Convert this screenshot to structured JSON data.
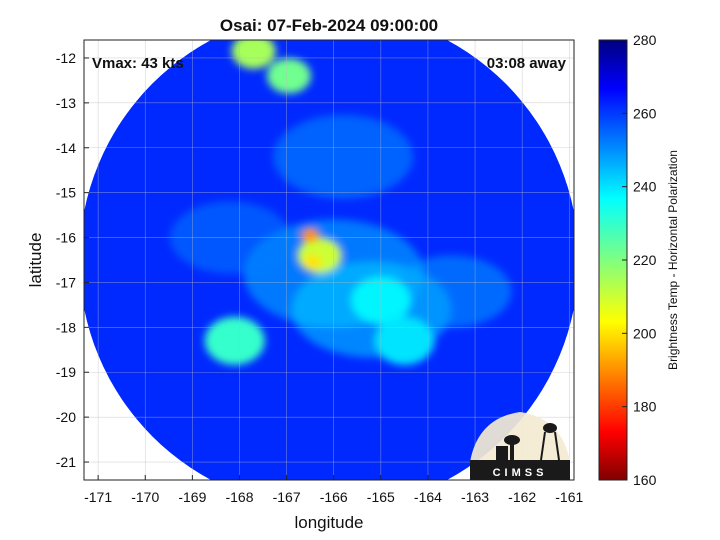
{
  "chart_data": {
    "type": "heatmap",
    "title": "Osai: 07-Feb-2024 09:00:00",
    "xlabel": "longitude",
    "ylabel": "latitude",
    "xlim": [
      -171.3,
      -160.9
    ],
    "ylim": [
      -21.4,
      -11.6
    ],
    "xticks": [
      -171,
      -170,
      -169,
      -168,
      -167,
      -166,
      -165,
      -164,
      -163,
      -162,
      -161
    ],
    "yticks": [
      -12,
      -13,
      -14,
      -15,
      -16,
      -17,
      -18,
      -19,
      -20,
      -21
    ],
    "y_axis_reversed": true,
    "grid": true,
    "annotations": {
      "top_left": "Vmax: 43 kts",
      "top_right": "03:08 away"
    },
    "colorbar": {
      "label": "Brightness Temp - Horizontal Polarization",
      "min": 160,
      "max": 280,
      "ticks": [
        280,
        260,
        240,
        220,
        200,
        180,
        160
      ],
      "colormap": "jet"
    },
    "swath": {
      "center": [
        -166.1,
        -16.5
      ],
      "radius_deg": 5.3
    },
    "features": [
      {
        "lon": -166.3,
        "lat": -16.4,
        "value": 210
      },
      {
        "lon": -166.5,
        "lat": -15.95,
        "value": 190
      },
      {
        "lon": -166.45,
        "lat": -16.55,
        "value": 200
      },
      {
        "lon": -167.7,
        "lat": -11.85,
        "value": 215
      },
      {
        "lon": -166.95,
        "lat": -12.4,
        "value": 222
      },
      {
        "lon": -168.1,
        "lat": -18.3,
        "value": 230
      },
      {
        "lon": -165.0,
        "lat": -17.4,
        "value": 238
      },
      {
        "lon": -164.5,
        "lat": -18.3,
        "value": 240
      }
    ],
    "logo_text": "CIMSS"
  }
}
